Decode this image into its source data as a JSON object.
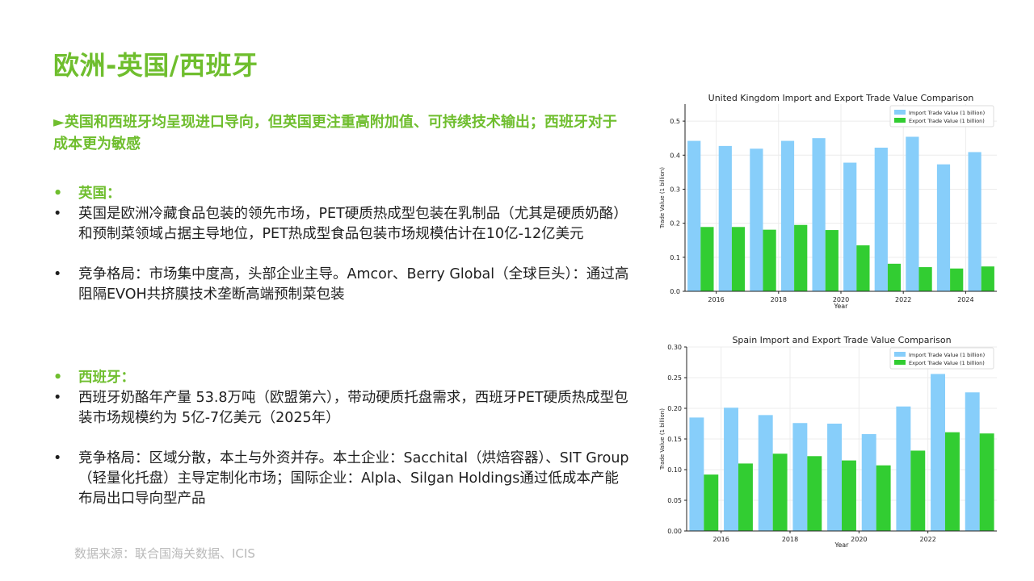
{
  "title": "欧洲-英国/西班牙",
  "subtitle": "►英国和西班牙均呈现进口导向，但英国更注重高附加值、可持续技术输出；西班牙对于成本更为敏感",
  "uk": {
    "heading": "英国：",
    "p1": "英国是欧洲冷藏食品包装的领先市场，PET硬质热成型包装在乳制品（尤其是硬质奶酪）和预制菜领域占据主导地位，PET热成型食品包装市场规模估计在10亿-12亿美元",
    "p2": "竞争格局：市场集中度高，头部企业主导。Amcor、Berry Global（全球巨头）：通过高阻隔EVOH共挤膜技术垄断高端预制菜包装"
  },
  "spain": {
    "heading": "西班牙：",
    "p1": "西班牙奶酪年产量 53.8万吨（欧盟第六），带动硬质托盘需求，西班牙PET硬质热成型包装市场规模约为 5亿-7亿美元（2025年）",
    "p2": "竞争格局：区域分散，本土与外资并存。本土企业：Sacchital（烘焙容器）、SIT Group（轻量化托盘）主导定制化市场；国际企业：Alpla、Silgan Holdings通过低成本产能布局出口导向型产品"
  },
  "bullet_symbol": "•",
  "source": "数据来源：联合国海关数据、ICIS",
  "colors": {
    "accent": "#6fbe2e",
    "import": "#87cefa",
    "export": "#32cd32"
  },
  "chart_data": [
    {
      "type": "bar",
      "title": "United Kingdom Import and Export Trade Value Comparison",
      "xlabel": "Year",
      "ylabel": "Trade Value (1 billion)",
      "x": [
        2015,
        2016,
        2017,
        2018,
        2019,
        2020,
        2021,
        2022,
        2023,
        2024
      ],
      "xticks": [
        2016,
        2018,
        2020,
        2022,
        2024
      ],
      "ylim": [
        0,
        0.55
      ],
      "yticks": [
        0.0,
        0.1,
        0.2,
        0.3,
        0.4,
        0.5
      ],
      "ytick_labels": [
        "0.0",
        "0.1",
        "0.2",
        "0.3",
        "0.4",
        "0.5"
      ],
      "grid": true,
      "legend": "top-right",
      "series": [
        {
          "name": "Import Trade Value (1 billion)",
          "color": "#87cefa",
          "values": [
            0.442,
            0.427,
            0.419,
            0.442,
            0.45,
            0.378,
            0.422,
            0.454,
            0.373,
            0.409
          ]
        },
        {
          "name": "Export Trade Value (1 billion)",
          "color": "#32cd32",
          "values": [
            0.189,
            0.189,
            0.181,
            0.195,
            0.18,
            0.135,
            0.081,
            0.071,
            0.067,
            0.073
          ]
        }
      ]
    },
    {
      "type": "bar",
      "title": "Spain Import and Export Trade Value Comparison",
      "xlabel": "Year",
      "ylabel": "Trade Value (1 billion)",
      "x": [
        2015,
        2016,
        2017,
        2018,
        2019,
        2020,
        2021,
        2022,
        2023
      ],
      "xticks": [
        2016,
        2018,
        2020,
        2022
      ],
      "ylim": [
        0,
        0.3
      ],
      "yticks": [
        0.0,
        0.05,
        0.1,
        0.15,
        0.2,
        0.25,
        0.3
      ],
      "ytick_labels": [
        "0.00",
        "0.05",
        "0.10",
        "0.15",
        "0.20",
        "0.25",
        "0.30"
      ],
      "grid": true,
      "legend": "top-right",
      "series": [
        {
          "name": "Import Trade Value (1 billion)",
          "color": "#87cefa",
          "values": [
            0.185,
            0.201,
            0.189,
            0.176,
            0.175,
            0.158,
            0.203,
            0.256,
            0.226
          ]
        },
        {
          "name": "Export Trade Value (1 billion)",
          "color": "#32cd32",
          "values": [
            0.092,
            0.11,
            0.126,
            0.122,
            0.115,
            0.107,
            0.131,
            0.161,
            0.159
          ]
        }
      ]
    }
  ]
}
